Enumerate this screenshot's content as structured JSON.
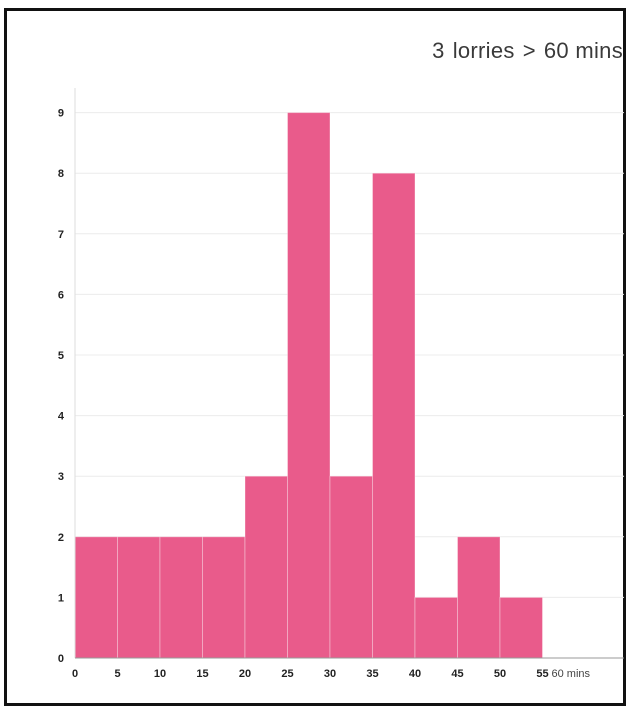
{
  "chart_data": {
    "type": "bar",
    "title": "3 lorries > 60 mins",
    "title_parts": [
      "3",
      "lorries",
      ">",
      "60 mins"
    ],
    "xlabel": "",
    "ylabel": "",
    "bins": [
      {
        "from": 0,
        "to": 5,
        "value": 2
      },
      {
        "from": 5,
        "to": 10,
        "value": 2
      },
      {
        "from": 10,
        "to": 15,
        "value": 2
      },
      {
        "from": 15,
        "to": 20,
        "value": 2
      },
      {
        "from": 20,
        "to": 25,
        "value": 3
      },
      {
        "from": 25,
        "to": 30,
        "value": 9
      },
      {
        "from": 30,
        "to": 35,
        "value": 3
      },
      {
        "from": 35,
        "to": 40,
        "value": 8
      },
      {
        "from": 40,
        "to": 45,
        "value": 1
      },
      {
        "from": 45,
        "to": 50,
        "value": 2
      },
      {
        "from": 50,
        "to": 55,
        "value": 1
      }
    ],
    "x_ticks": [
      "0",
      "5",
      "10",
      "15",
      "20",
      "25",
      "30",
      "35",
      "40",
      "45",
      "50",
      "55"
    ],
    "x_last_tick": "60 mins",
    "y_ticks": [
      "0",
      "1",
      "2",
      "3",
      "4",
      "5",
      "6",
      "7",
      "8",
      "9"
    ],
    "xlim": [
      0,
      60
    ],
    "ylim": [
      0,
      9.6
    ],
    "grid": true,
    "bar_color": "#e95b8b"
  }
}
